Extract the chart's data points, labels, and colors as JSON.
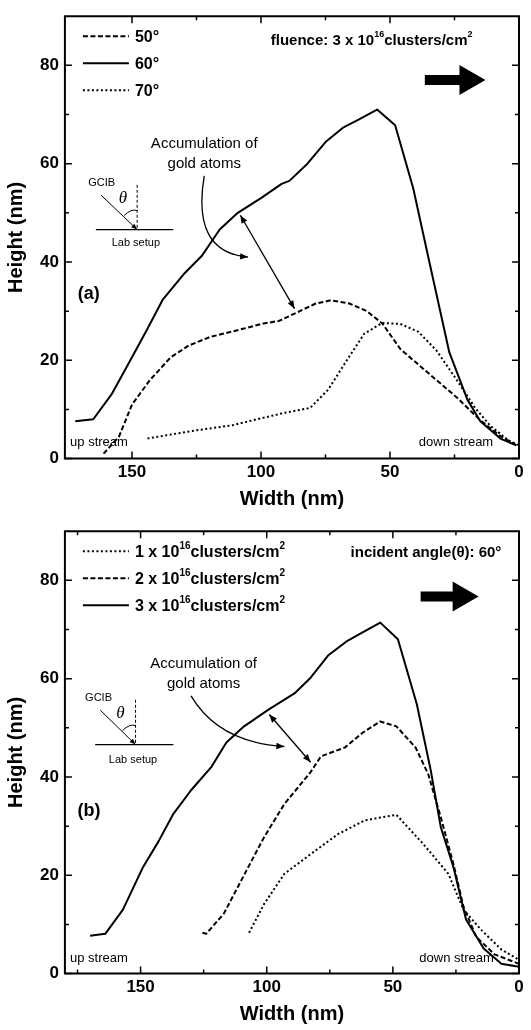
{
  "chart_data": [
    {
      "type": "line",
      "xlabel": "Width (nm)",
      "ylabel": "Height (nm)",
      "xlim": [
        176,
        0
      ],
      "ylim": [
        0,
        90
      ],
      "xticks": [
        150,
        {
          "value": 125,
          "label": null
        },
        100,
        {
          "value": 75,
          "label": null
        },
        50,
        {
          "value": 25,
          "label": null
        },
        0
      ],
      "yticks": [
        0,
        {
          "value": 10,
          "label": null
        },
        20,
        {
          "value": 30,
          "label": null
        },
        40,
        {
          "value": 50,
          "label": null
        },
        60,
        {
          "value": 70,
          "label": null
        },
        80
      ],
      "legend": "top left",
      "marker": "none",
      "annotations": [
        "fluence: 3 x 10$^{16}$clusters/cm$^{2}$",
        "Accumulation of gold atoms",
        "GCIB",
        "θ",
        "Lab setup",
        "(a)",
        "up stream",
        "down stream"
      ],
      "series": [
        {
          "name": "50°",
          "color": "#000000",
          "line_style": "dashed",
          "x": [
            161,
            155,
            150,
            143,
            135,
            128,
            120,
            107,
            99,
            93,
            87,
            79,
            73,
            66,
            59,
            53,
            46,
            34.5,
            24,
            15,
            7,
            1
          ],
          "values": [
            1,
            4.5,
            11,
            16,
            20.6,
            23,
            24.7,
            26.4,
            27.5,
            28,
            29.5,
            31.5,
            32.2,
            31.6,
            30,
            27.5,
            22.3,
            17.1,
            12.4,
            7.8,
            4.5,
            2.7
          ]
        },
        {
          "name": "60°",
          "color": "#000000",
          "line_style": "solid",
          "x": [
            172,
            165,
            158,
            150,
            144,
            138,
            130,
            123,
            116,
            109,
            100,
            92,
            89,
            82,
            75,
            68,
            62,
            55,
            48,
            41,
            35,
            27,
            20,
            15,
            7,
            1
          ],
          "values": [
            7.6,
            8,
            13,
            20.6,
            26.4,
            32.4,
            37.5,
            41.2,
            46.6,
            50,
            53,
            55.9,
            56.5,
            60,
            64.4,
            67.4,
            69,
            71,
            67.8,
            55,
            40.6,
            21.6,
            12,
            7.6,
            4,
            2.7
          ]
        },
        {
          "name": "70°",
          "color": "#000000",
          "line_style": "dotted",
          "x": [
            144,
            127,
            111,
            100,
            91,
            81,
            74,
            66,
            60,
            53,
            46,
            39,
            32,
            24,
            17,
            11,
            4,
            0
          ],
          "values": [
            4.1,
            5.6,
            6.8,
            8.2,
            9.3,
            10.3,
            14,
            20.6,
            25.4,
            27.6,
            27.4,
            25.8,
            22,
            15.9,
            10.3,
            6.6,
            3.7,
            2.7
          ]
        }
      ]
    },
    {
      "type": "line",
      "xlabel": "Width (nm)",
      "ylabel": "Height (nm)",
      "xlim": [
        180,
        0
      ],
      "ylim": [
        0,
        90
      ],
      "xticks": [
        {
          "value": 175,
          "label": null
        },
        150,
        {
          "value": 125,
          "label": null
        },
        100,
        {
          "value": 75,
          "label": null
        },
        50,
        {
          "value": 25,
          "label": null
        },
        0
      ],
      "yticks": [
        0,
        {
          "value": 10,
          "label": null
        },
        20,
        {
          "value": 30,
          "label": null
        },
        40,
        {
          "value": 50,
          "label": null
        },
        60,
        {
          "value": 70,
          "label": null
        },
        80
      ],
      "legend": "top left",
      "marker": "none",
      "annotations": [
        "incident angle(θ): 60°",
        "Accumulation of gold atoms",
        "GCIB",
        "θ",
        "Lab setup",
        "(b)",
        "up stream",
        "down stream"
      ],
      "series": [
        {
          "name": "1 x 10$^{16}$clusters/cm$^{2}$",
          "color": "#000000",
          "line_style": "dotted",
          "x": [
            107,
            101,
            93,
            82.6,
            71.7,
            61,
            48.6,
            38,
            28,
            22,
            15,
            7,
            0
          ],
          "values": [
            8.3,
            14.2,
            20.3,
            24.3,
            28.4,
            31.2,
            32.3,
            26.4,
            20.3,
            13,
            8.9,
            4.9,
            2.8
          ]
        },
        {
          "name": "2 x 10$^{16}$clusters/cm$^{2}$",
          "color": "#000000",
          "line_style": "dashed",
          "x": [
            125.5,
            124,
            117,
            108,
            101,
            93,
            82.6,
            78.5,
            69,
            62,
            55,
            48.6,
            41,
            36,
            31,
            26,
            22,
            17,
            9.7,
            0
          ],
          "values": [
            8.3,
            8.1,
            12.2,
            21,
            27.8,
            34.5,
            41,
            44.2,
            46,
            49,
            51.3,
            50.3,
            46,
            40.6,
            31.8,
            22.3,
            13.6,
            7.5,
            3.9,
            2
          ]
        },
        {
          "name": "3 x 10$^{16}$clusters/cm$^{2}$",
          "color": "#000000",
          "line_style": "solid",
          "x": [
            170,
            164,
            157,
            149,
            143,
            137,
            130,
            122,
            116,
            109,
            99,
            89,
            82.6,
            75.7,
            68,
            62,
            55,
            48,
            40.5,
            35,
            31,
            26,
            21,
            14,
            7,
            0
          ],
          "values": [
            7.7,
            8.1,
            13,
            21.7,
            26.8,
            32.5,
            37.3,
            42,
            47,
            50.3,
            53.8,
            57,
            60.2,
            64.7,
            67.7,
            69.4,
            71.4,
            68,
            54.8,
            41.4,
            29.8,
            21.7,
            11,
            5.1,
            2,
            1.4
          ]
        }
      ]
    }
  ]
}
